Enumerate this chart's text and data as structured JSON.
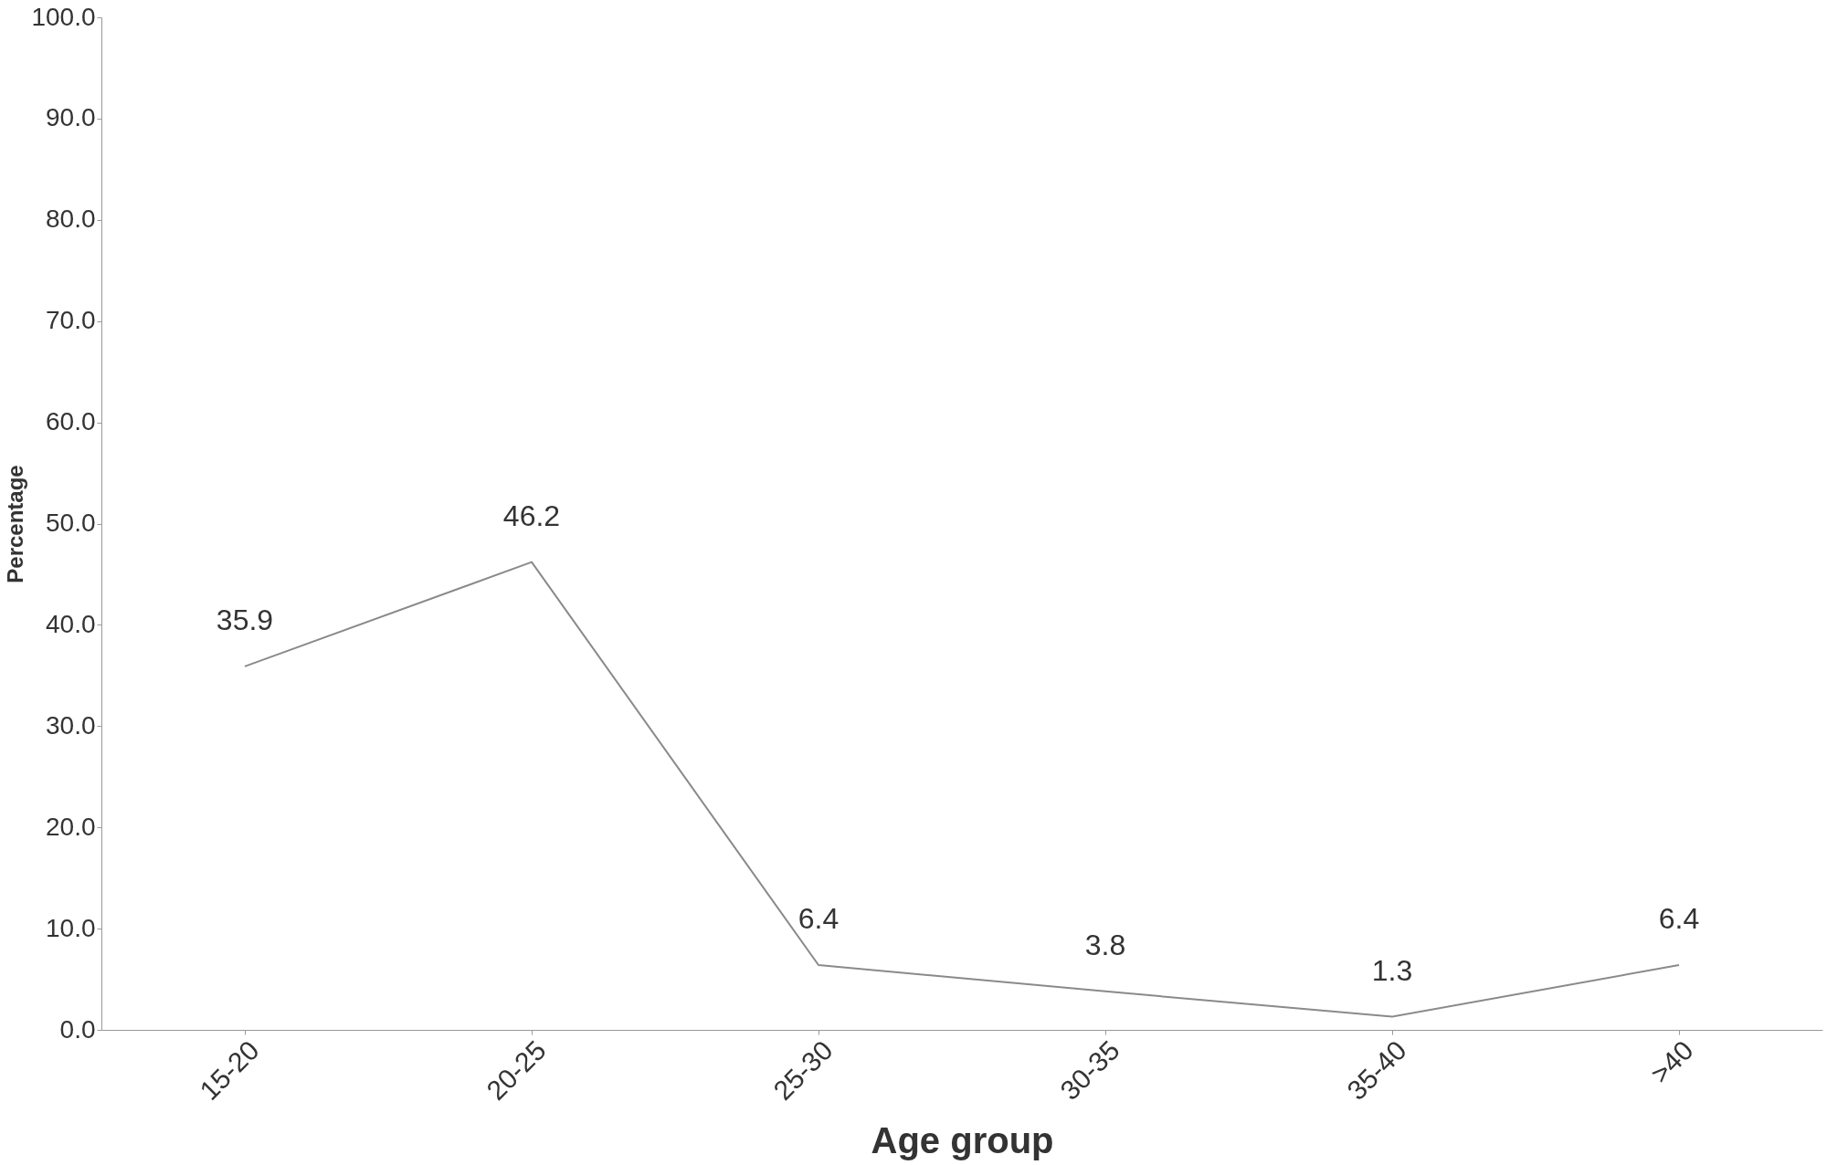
{
  "chart_data": {
    "type": "line",
    "xlabel": "Age group",
    "ylabel": "Percentage",
    "categories": [
      "15-20",
      "20-25",
      "25-30",
      "30-35",
      "35-40",
      ">40"
    ],
    "series": [
      {
        "color": "#8a8a8a",
        "values": [
          35.9,
          46.2,
          6.4,
          3.8,
          1.3,
          6.4
        ]
      }
    ],
    "ylim": [
      0,
      100
    ],
    "yticks": [
      {
        "value": 0,
        "label": "0.0"
      },
      {
        "value": 10,
        "label": "10.0"
      },
      {
        "value": 20,
        "label": "20.0"
      },
      {
        "value": 30,
        "label": "30.0"
      },
      {
        "value": 40,
        "label": "40.0"
      },
      {
        "value": 50,
        "label": "50.0"
      },
      {
        "value": 60,
        "label": "60.0"
      },
      {
        "value": 70,
        "label": "70.0"
      },
      {
        "value": 80,
        "label": "80.0"
      },
      {
        "value": 90,
        "label": "90.0"
      },
      {
        "value": 100,
        "label": "100.0"
      }
    ],
    "data_labels": true,
    "grid": false,
    "marker": "none",
    "line_style": "solid"
  }
}
